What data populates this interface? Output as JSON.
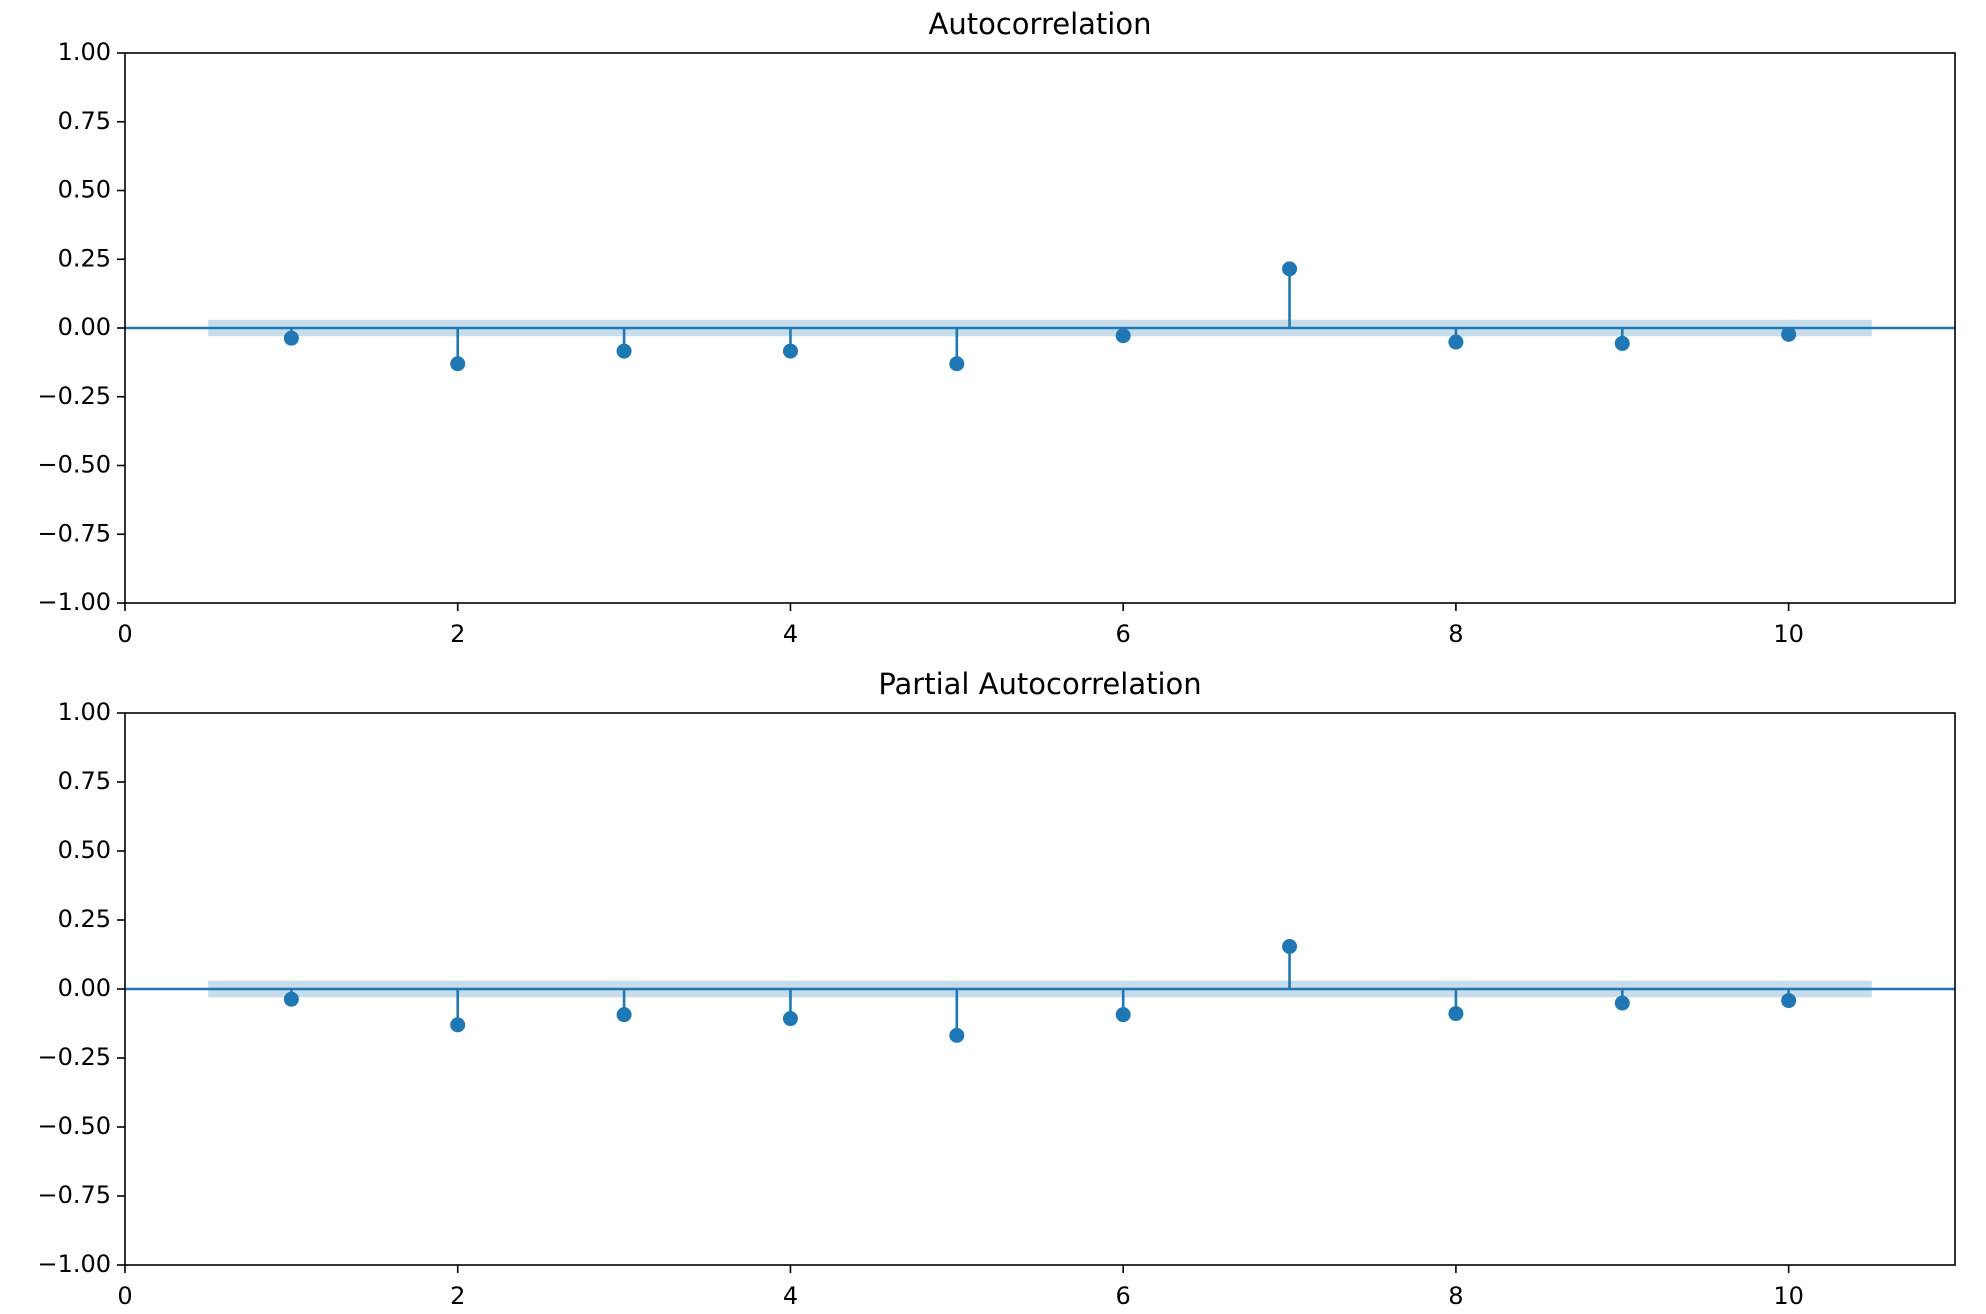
{
  "chart_data": [
    {
      "type": "stem",
      "title": "Autocorrelation",
      "x": [
        1,
        2,
        3,
        4,
        5,
        6,
        7,
        8,
        9,
        10
      ],
      "values": [
        -0.037,
        -0.13,
        -0.084,
        -0.084,
        -0.13,
        -0.028,
        0.215,
        -0.051,
        -0.056,
        -0.023
      ],
      "color": "#1f77b4",
      "hline": 0,
      "confint": 0.03,
      "confint_x": [
        0.5,
        10.5
      ],
      "xlim": [
        0,
        11
      ],
      "xticks": [
        0,
        2,
        4,
        6,
        8,
        10
      ],
      "ylim": [
        -1,
        1
      ],
      "yticks": [
        {
          "value": -1,
          "label": "−1.00"
        },
        {
          "value": -0.75,
          "label": "−0.75"
        },
        {
          "value": -0.5,
          "label": "−0.50"
        },
        {
          "value": -0.25,
          "label": "−0.25"
        },
        {
          "value": 0,
          "label": "0.00"
        },
        {
          "value": 0.25,
          "label": "0.25"
        },
        {
          "value": 0.5,
          "label": "0.50"
        },
        {
          "value": 0.75,
          "label": "0.75"
        },
        {
          "value": 1,
          "label": "1.00"
        }
      ]
    },
    {
      "type": "stem",
      "title": "Partial Autocorrelation",
      "x": [
        1,
        2,
        3,
        4,
        5,
        6,
        7,
        8,
        9,
        10
      ],
      "values": [
        -0.037,
        -0.13,
        -0.093,
        -0.107,
        -0.168,
        -0.093,
        0.154,
        -0.089,
        -0.051,
        -0.042
      ],
      "color": "#1f77b4",
      "hline": 0,
      "confint": 0.03,
      "confint_x": [
        0.5,
        10.5
      ],
      "xlim": [
        0,
        11
      ],
      "xticks": [
        0,
        2,
        4,
        6,
        8,
        10
      ],
      "ylim": [
        -1,
        1
      ],
      "yticks": [
        {
          "value": -1,
          "label": "−1.00"
        },
        {
          "value": -0.75,
          "label": "−0.75"
        },
        {
          "value": -0.5,
          "label": "−0.50"
        },
        {
          "value": -0.25,
          "label": "−0.25"
        },
        {
          "value": 0,
          "label": "0.00"
        },
        {
          "value": 0.25,
          "label": "0.25"
        },
        {
          "value": 0.5,
          "label": "0.50"
        },
        {
          "value": 0.75,
          "label": "0.75"
        },
        {
          "value": 1,
          "label": "1.00"
        }
      ]
    }
  ]
}
